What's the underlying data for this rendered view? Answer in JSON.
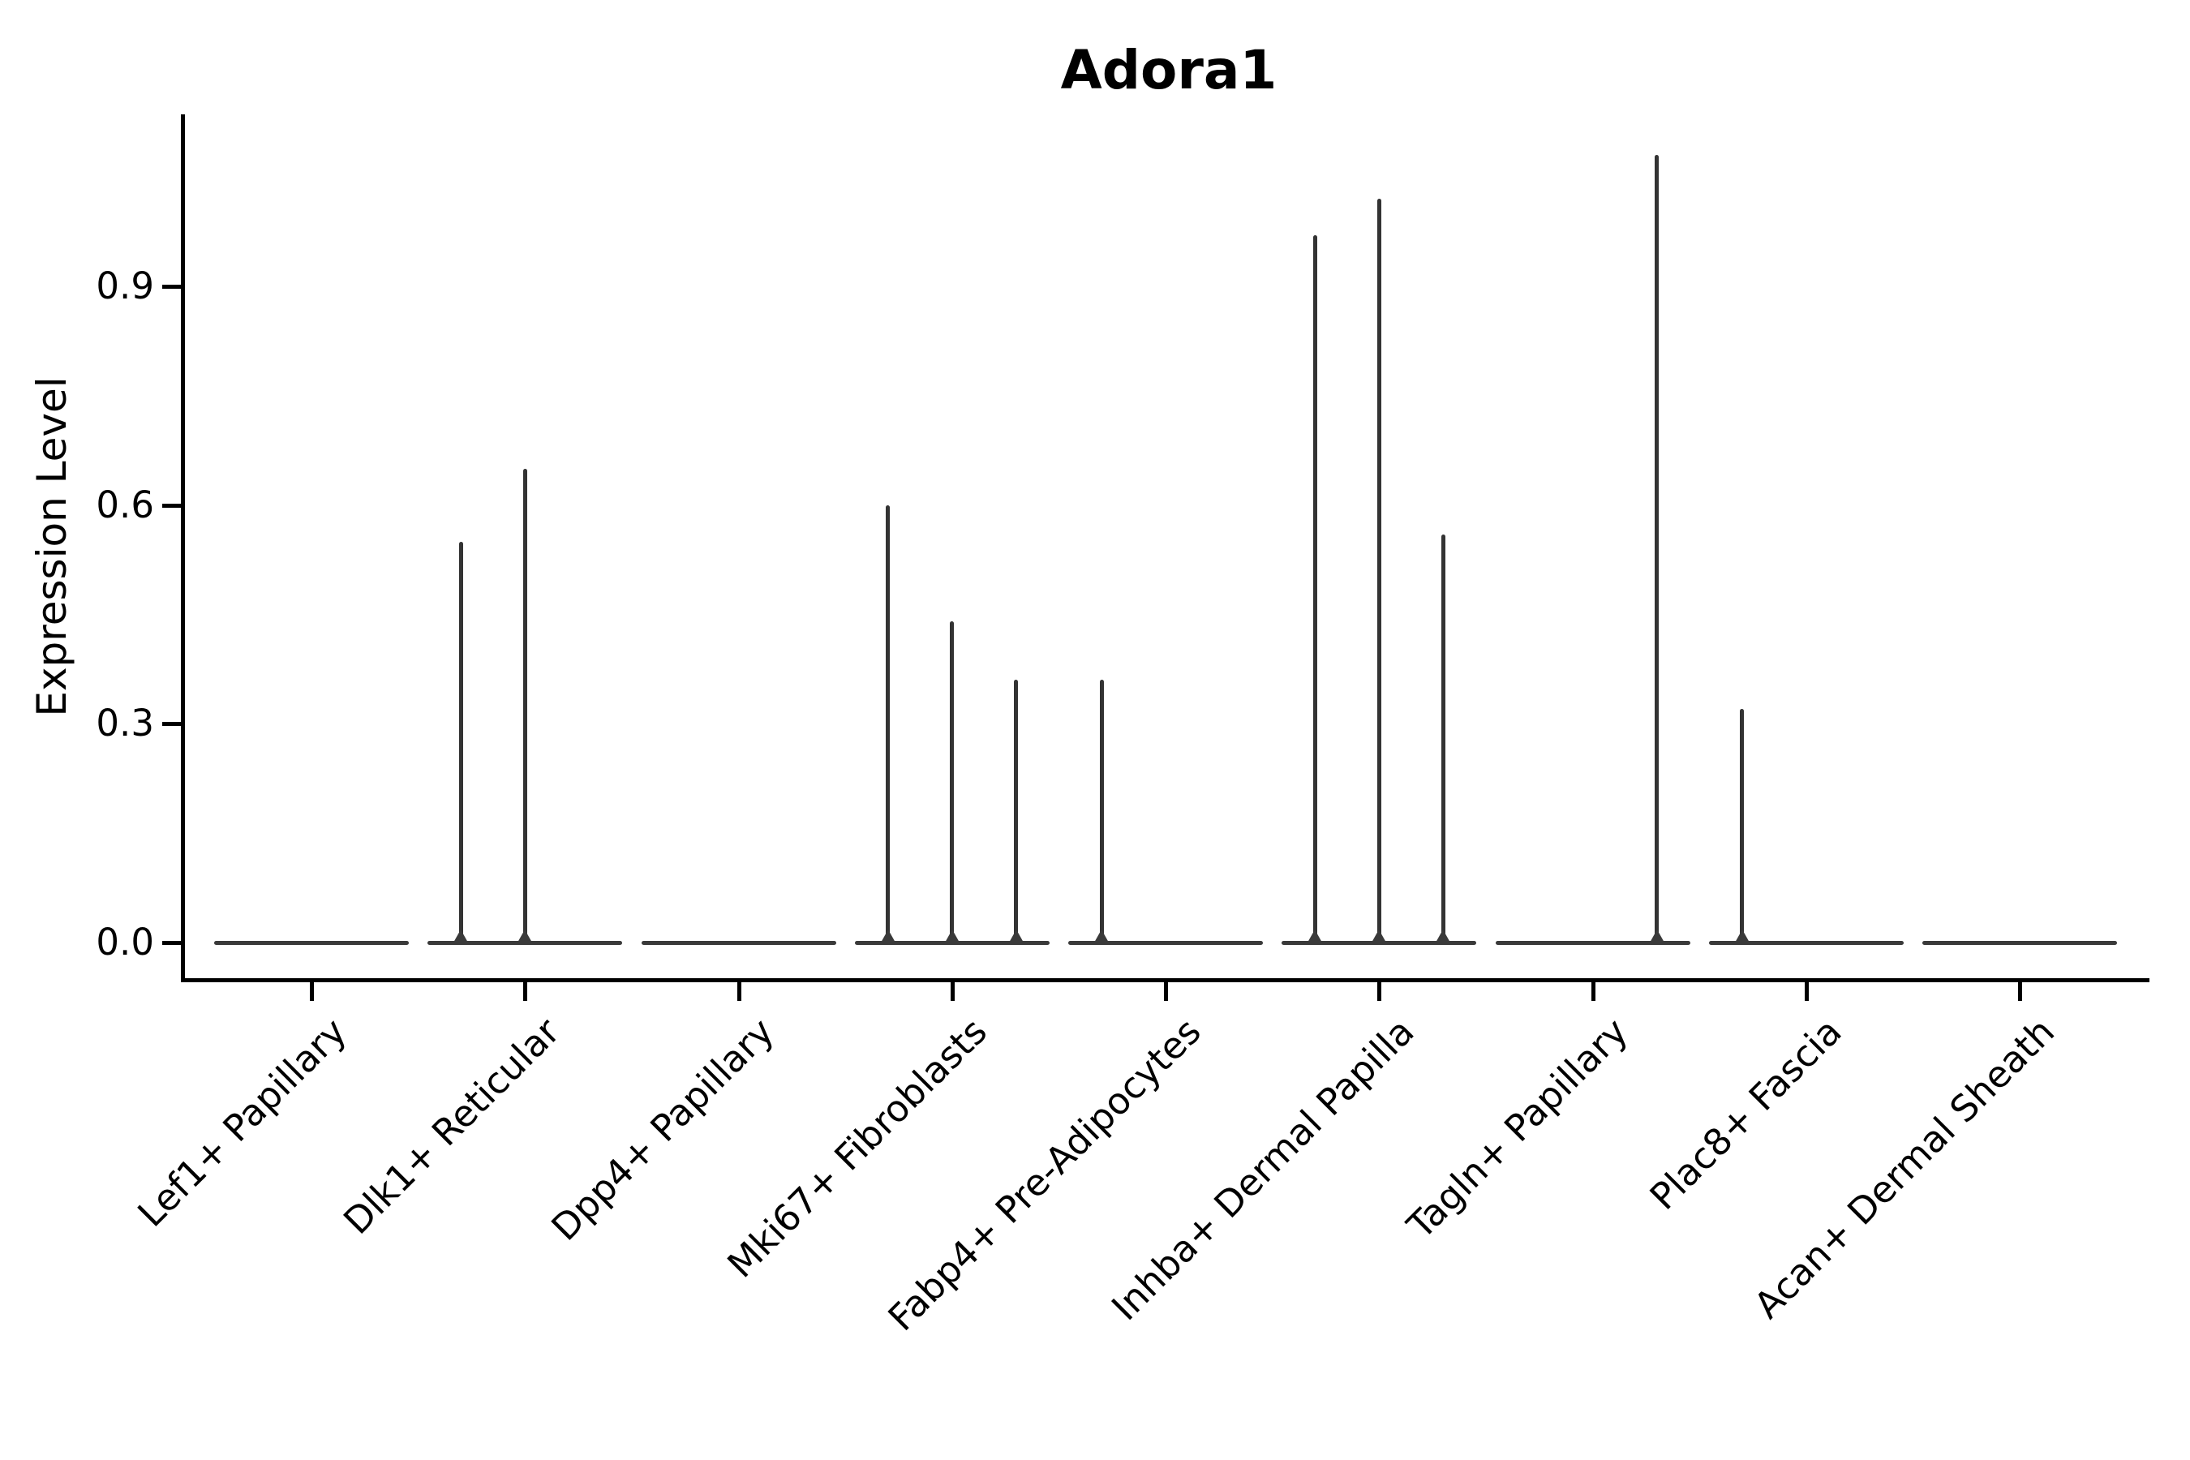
{
  "figure": {
    "background": "#ffffff"
  },
  "chart_data": {
    "type": "violin",
    "title": "Adora1",
    "ylabel": "Expression Level",
    "xlabel": "",
    "ytick_labels": [
      "0.0",
      "0.3",
      "0.6",
      "0.9"
    ],
    "ytick_values": [
      0.0,
      0.3,
      0.6,
      0.9
    ],
    "ylim": [
      -0.05,
      1.14
    ],
    "grid": false,
    "legend": false,
    "violins_per_category": 3,
    "categories": [
      "Lef1+ Papillary",
      "Dlk1+ Reticular",
      "Dpp4+ Papillary",
      "Mki67+ Fibroblasts",
      "Fabp4+ Pre-Adipocytes",
      "Inhba+ Dermal Papilla",
      "Tagln+ Papillary",
      "Plac8+ Fascia",
      "Acan+ Dermal Sheath"
    ],
    "series": [
      {
        "category": "Lef1+ Papillary",
        "sub_violin_max_expression": [
          0,
          0,
          0
        ]
      },
      {
        "category": "Dlk1+ Reticular",
        "sub_violin_max_expression": [
          0.55,
          0.65,
          0
        ]
      },
      {
        "category": "Dpp4+ Papillary",
        "sub_violin_max_expression": [
          0,
          0,
          0
        ]
      },
      {
        "category": "Mki67+ Fibroblasts",
        "sub_violin_max_expression": [
          0.6,
          0.44,
          0.36
        ]
      },
      {
        "category": "Fabp4+ Pre-Adipocytes",
        "sub_violin_max_expression": [
          0.36,
          0,
          0
        ]
      },
      {
        "category": "Inhba+ Dermal Papilla",
        "sub_violin_max_expression": [
          0.97,
          1.02,
          0.56
        ]
      },
      {
        "category": "Tagln+ Papillary",
        "sub_violin_max_expression": [
          0,
          0,
          1.08
        ]
      },
      {
        "category": "Plac8+ Fascia",
        "sub_violin_max_expression": [
          0.32,
          0,
          0
        ]
      },
      {
        "category": "Acan+ Dermal Sheath",
        "sub_violin_max_expression": [
          0,
          0,
          0
        ]
      }
    ],
    "colors": {
      "violin": "#333333",
      "baseline": "#3a3a3a",
      "axis": "#000000",
      "text": "#000000",
      "background": "#ffffff"
    }
  }
}
